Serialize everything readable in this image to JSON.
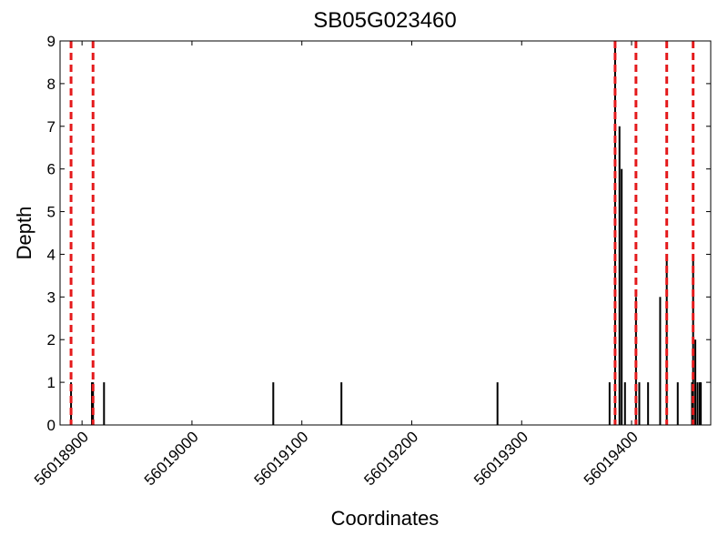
{
  "chart_data": {
    "type": "bar",
    "title": "SB05G023460",
    "x_label": "Coordinates",
    "y_label": "Depth",
    "x": [
      56018890,
      56018909,
      56018910,
      56018920,
      56019074,
      56019136,
      56019278,
      56019380,
      56019385,
      56019389,
      56019391,
      56019394,
      56019404,
      56019407,
      56019415,
      56019426,
      56019432,
      56019442,
      56019455,
      56019456,
      56019458,
      56019460,
      56019462,
      56019463
    ],
    "values": [
      1,
      1,
      1,
      1,
      1,
      1,
      1,
      1,
      9,
      7,
      6,
      1,
      3,
      1,
      1,
      3,
      4,
      1,
      1,
      4,
      2,
      1,
      1,
      1
    ],
    "color": "#000000",
    "markers": {
      "color": "#e41a1c",
      "values": [
        56018890,
        56018910,
        56019385,
        56019404,
        56019432,
        56019456
      ]
    },
    "xlim": [
      56018880,
      56019472
    ],
    "xticks": [
      56018900,
      56019000,
      56019100,
      56019200,
      56019300,
      56019400
    ],
    "ylim": [
      0,
      9
    ],
    "yticks": [
      0,
      1,
      2,
      3,
      4,
      5,
      6,
      7,
      8,
      9
    ]
  }
}
